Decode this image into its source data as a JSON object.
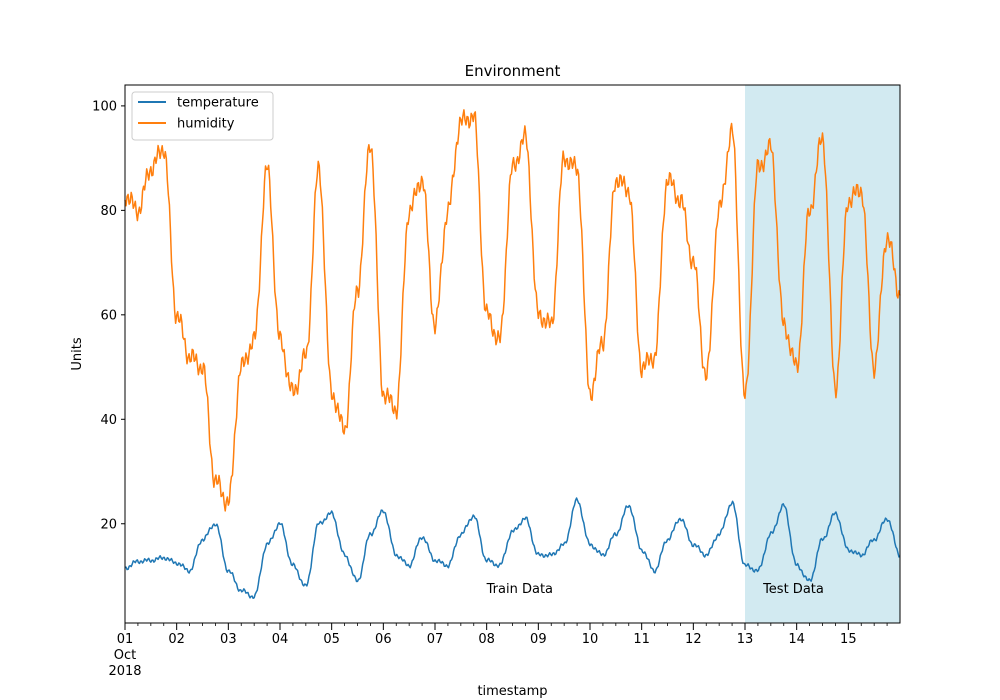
{
  "chart_data": {
    "type": "line",
    "title": "Environment",
    "xlabel": "timestamp",
    "ylabel": "Units",
    "xlim": [
      "2018-10-01",
      "2018-10-16"
    ],
    "ylim": [
      1,
      104
    ],
    "x_ticks": [
      "01",
      "02",
      "03",
      "04",
      "05",
      "06",
      "07",
      "08",
      "09",
      "10",
      "11",
      "12",
      "13",
      "14",
      "15"
    ],
    "x_tick_sub": [
      "Oct",
      "2018"
    ],
    "y_ticks": [
      20,
      40,
      60,
      80,
      100
    ],
    "legend_position": "top-left",
    "grid": false,
    "regions": [
      {
        "name": "Test Data",
        "start": "2018-10-13",
        "end": "2018-10-16",
        "color": "#add8e6"
      }
    ],
    "annotations": [
      {
        "text": "Train Data",
        "x": "2018-10-08",
        "y": 7.5
      },
      {
        "text": "Test Data",
        "x": "2018-10-13.35",
        "y": 7.5
      }
    ],
    "series": [
      {
        "name": "temperature",
        "color": "#1f77b4",
        "x": [
          "2018-10-01 00:00",
          "2018-10-01 06:00",
          "2018-10-01 12:00",
          "2018-10-01 18:00",
          "2018-10-02 00:00",
          "2018-10-02 06:00",
          "2018-10-02 12:00",
          "2018-10-02 18:00",
          "2018-10-03 00:00",
          "2018-10-03 06:00",
          "2018-10-03 12:00",
          "2018-10-03 18:00",
          "2018-10-04 00:00",
          "2018-10-04 06:00",
          "2018-10-04 12:00",
          "2018-10-04 18:00",
          "2018-10-05 00:00",
          "2018-10-05 06:00",
          "2018-10-05 12:00",
          "2018-10-05 18:00",
          "2018-10-06 00:00",
          "2018-10-06 06:00",
          "2018-10-06 12:00",
          "2018-10-06 18:00",
          "2018-10-07 00:00",
          "2018-10-07 06:00",
          "2018-10-07 12:00",
          "2018-10-07 18:00",
          "2018-10-08 00:00",
          "2018-10-08 06:00",
          "2018-10-08 12:00",
          "2018-10-08 18:00",
          "2018-10-09 00:00",
          "2018-10-09 06:00",
          "2018-10-09 12:00",
          "2018-10-09 18:00",
          "2018-10-10 00:00",
          "2018-10-10 06:00",
          "2018-10-10 12:00",
          "2018-10-10 18:00",
          "2018-10-11 00:00",
          "2018-10-11 06:00",
          "2018-10-11 12:00",
          "2018-10-11 18:00",
          "2018-10-12 00:00",
          "2018-10-12 06:00",
          "2018-10-12 12:00",
          "2018-10-12 18:00",
          "2018-10-13 00:00",
          "2018-10-13 06:00",
          "2018-10-13 12:00",
          "2018-10-13 18:00",
          "2018-10-14 00:00",
          "2018-10-14 06:00",
          "2018-10-14 12:00",
          "2018-10-14 18:00",
          "2018-10-15 00:00",
          "2018-10-15 06:00",
          "2018-10-15 12:00",
          "2018-10-15 18:00",
          "2018-10-16 00:00"
        ],
        "values": [
          11.5,
          12.8,
          13,
          13.5,
          12.5,
          11,
          17,
          20,
          11,
          7.2,
          6,
          16,
          20,
          12,
          8,
          20,
          22,
          14,
          9,
          18,
          22.5,
          14,
          12,
          17.5,
          13,
          12,
          18,
          21.5,
          13,
          12,
          18.5,
          21,
          14,
          14,
          16,
          24.5,
          16,
          14,
          18,
          23.5,
          15,
          11,
          17,
          21,
          16,
          14,
          18,
          24,
          12,
          11,
          18,
          23.5,
          12,
          9,
          17,
          22,
          15,
          14,
          17,
          21,
          14
        ]
      },
      {
        "name": "humidity",
        "color": "#ff7f0e",
        "x": [
          "2018-10-01 00:00",
          "2018-10-01 06:00",
          "2018-10-01 12:00",
          "2018-10-01 18:00",
          "2018-10-02 00:00",
          "2018-10-02 06:00",
          "2018-10-02 12:00",
          "2018-10-02 18:00",
          "2018-10-03 00:00",
          "2018-10-03 06:00",
          "2018-10-03 12:00",
          "2018-10-03 18:00",
          "2018-10-04 00:00",
          "2018-10-04 06:00",
          "2018-10-04 12:00",
          "2018-10-04 18:00",
          "2018-10-05 00:00",
          "2018-10-05 06:00",
          "2018-10-05 12:00",
          "2018-10-05 18:00",
          "2018-10-06 00:00",
          "2018-10-06 06:00",
          "2018-10-06 12:00",
          "2018-10-06 18:00",
          "2018-10-07 00:00",
          "2018-10-07 06:00",
          "2018-10-07 12:00",
          "2018-10-07 18:00",
          "2018-10-08 00:00",
          "2018-10-08 06:00",
          "2018-10-08 12:00",
          "2018-10-08 18:00",
          "2018-10-09 00:00",
          "2018-10-09 06:00",
          "2018-10-09 12:00",
          "2018-10-09 18:00",
          "2018-10-10 00:00",
          "2018-10-10 06:00",
          "2018-10-10 12:00",
          "2018-10-10 18:00",
          "2018-10-11 00:00",
          "2018-10-11 06:00",
          "2018-10-11 12:00",
          "2018-10-11 18:00",
          "2018-10-12 00:00",
          "2018-10-12 06:00",
          "2018-10-12 12:00",
          "2018-10-12 18:00",
          "2018-10-13 00:00",
          "2018-10-13 06:00",
          "2018-10-13 12:00",
          "2018-10-13 18:00",
          "2018-10-14 00:00",
          "2018-10-14 06:00",
          "2018-10-14 12:00",
          "2018-10-14 18:00",
          "2018-10-15 00:00",
          "2018-10-15 06:00",
          "2018-10-15 12:00",
          "2018-10-15 18:00",
          "2018-10-16 00:00"
        ],
        "values": [
          83,
          80,
          88,
          92,
          60,
          52,
          50,
          28,
          24,
          50,
          55,
          88,
          55,
          45,
          52,
          88,
          45,
          38,
          65,
          93,
          45,
          42,
          80,
          86,
          58,
          80,
          97,
          98,
          60,
          55,
          88,
          94,
          60,
          58,
          90,
          88,
          45,
          55,
          86,
          84,
          50,
          52,
          86,
          82,
          70,
          48,
          80,
          95,
          44,
          88,
          92,
          58,
          50,
          80,
          94,
          46,
          82,
          84,
          50,
          75,
          64
        ]
      }
    ]
  }
}
